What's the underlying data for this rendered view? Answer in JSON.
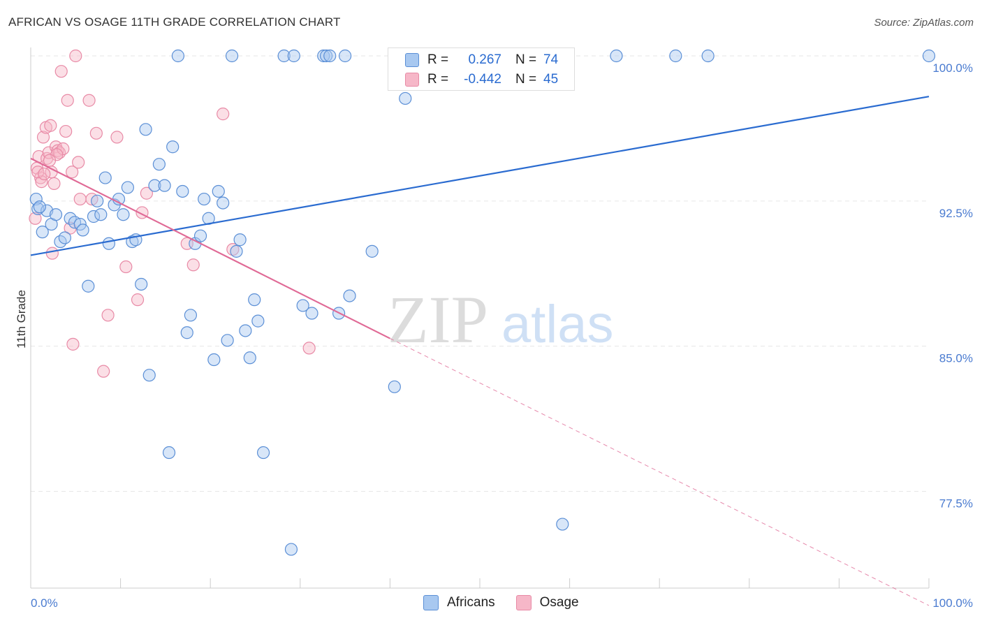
{
  "header": {
    "title": "AFRICAN VS OSAGE 11TH GRADE CORRELATION CHART",
    "source": "Source: ZipAtlas.com"
  },
  "legend": {
    "rows": [
      {
        "r_label": "R =",
        "r_value": "0.267",
        "n_label": "N =",
        "n_value": "74"
      },
      {
        "r_label": "R =",
        "r_value": "-0.442",
        "n_label": "N =",
        "n_value": "45"
      }
    ]
  },
  "watermark": {
    "zip": "ZIP",
    "atlas": "atlas"
  },
  "colors": {
    "africans_fill": "#a8c8f0",
    "africans_stroke": "#5b8fd6",
    "africans_line": "#2a6bd0",
    "osage_fill": "#f6b7c8",
    "osage_stroke": "#e88aa6",
    "osage_line": "#e06a96"
  },
  "chart_data": {
    "type": "scatter",
    "title": "AFRICAN VS OSAGE 11TH GRADE CORRELATION CHART",
    "xlabel": "",
    "ylabel": "11th Grade",
    "xlim": [
      0,
      100
    ],
    "ylim": [
      71,
      101
    ],
    "x_tick_labels": [
      "0.0%",
      "100.0%"
    ],
    "y_ticks": [
      77.5,
      85.0,
      92.5,
      100.0
    ],
    "y_tick_labels": [
      "77.5%",
      "85.0%",
      "92.5%",
      "100.0%"
    ],
    "grid": true,
    "series": [
      {
        "name": "Africans",
        "trend": {
          "x": [
            0,
            100
          ],
          "y": [
            89.7,
            97.9
          ]
        },
        "points": [
          [
            0.6,
            92.6
          ],
          [
            0.8,
            92.1
          ],
          [
            1.3,
            90.9
          ],
          [
            1.8,
            92.0
          ],
          [
            2.3,
            91.3
          ],
          [
            2.8,
            91.8
          ],
          [
            3.3,
            90.4
          ],
          [
            3.8,
            90.6
          ],
          [
            4.4,
            91.6
          ],
          [
            4.9,
            91.4
          ],
          [
            5.5,
            91.3
          ],
          [
            5.8,
            91.0
          ],
          [
            6.4,
            88.1
          ],
          [
            7.0,
            91.7
          ],
          [
            7.4,
            92.5
          ],
          [
            7.8,
            91.8
          ],
          [
            8.3,
            93.7
          ],
          [
            8.7,
            90.3
          ],
          [
            9.3,
            92.3
          ],
          [
            9.8,
            92.6
          ],
          [
            10.3,
            91.8
          ],
          [
            10.8,
            93.2
          ],
          [
            11.3,
            90.4
          ],
          [
            11.7,
            90.5
          ],
          [
            12.3,
            88.2
          ],
          [
            12.8,
            96.2
          ],
          [
            13.2,
            83.5
          ],
          [
            13.8,
            93.3
          ],
          [
            14.3,
            94.4
          ],
          [
            14.9,
            93.3
          ],
          [
            15.4,
            79.5
          ],
          [
            15.8,
            95.3
          ],
          [
            16.4,
            100.0
          ],
          [
            16.9,
            93.0
          ],
          [
            17.4,
            85.7
          ],
          [
            17.8,
            86.6
          ],
          [
            18.3,
            90.3
          ],
          [
            18.9,
            90.7
          ],
          [
            19.3,
            92.6
          ],
          [
            19.8,
            91.6
          ],
          [
            20.4,
            84.3
          ],
          [
            20.9,
            93.0
          ],
          [
            21.4,
            92.4
          ],
          [
            21.9,
            85.3
          ],
          [
            22.4,
            100.0
          ],
          [
            22.9,
            89.9
          ],
          [
            23.3,
            90.5
          ],
          [
            23.9,
            85.8
          ],
          [
            24.4,
            84.4
          ],
          [
            24.9,
            87.4
          ],
          [
            25.3,
            86.3
          ],
          [
            25.9,
            79.5
          ],
          [
            28.2,
            100.0
          ],
          [
            29.3,
            100.0
          ],
          [
            29.0,
            74.5
          ],
          [
            30.3,
            87.1
          ],
          [
            31.3,
            86.7
          ],
          [
            32.6,
            100.0
          ],
          [
            32.9,
            100.0
          ],
          [
            33.3,
            100.0
          ],
          [
            34.3,
            86.7
          ],
          [
            35.0,
            100.0
          ],
          [
            35.5,
            87.6
          ],
          [
            38.0,
            89.9
          ],
          [
            40.5,
            82.9
          ],
          [
            41.7,
            97.8
          ],
          [
            43.0,
            98.8
          ],
          [
            54.7,
            100.0
          ],
          [
            59.2,
            75.8
          ],
          [
            65.2,
            100.0
          ],
          [
            71.8,
            100.0
          ],
          [
            75.4,
            100.0
          ],
          [
            100.0,
            100.0
          ],
          [
            1.0,
            92.2
          ]
        ]
      },
      {
        "name": "Osage",
        "trend": {
          "x": [
            0,
            40
          ],
          "y": [
            94.7,
            85.4
          ]
        },
        "trend_dashed": {
          "x": [
            40,
            100
          ],
          "y": [
            85.4,
            71.6
          ]
        },
        "points": [
          [
            0.5,
            91.6
          ],
          [
            0.7,
            94.2
          ],
          [
            0.9,
            94.8
          ],
          [
            1.1,
            93.7
          ],
          [
            1.4,
            95.8
          ],
          [
            1.7,
            96.3
          ],
          [
            1.8,
            94.7
          ],
          [
            2.0,
            95.0
          ],
          [
            2.2,
            96.4
          ],
          [
            2.3,
            94.0
          ],
          [
            2.4,
            89.8
          ],
          [
            2.6,
            93.4
          ],
          [
            2.8,
            95.3
          ],
          [
            3.0,
            95.1
          ],
          [
            3.2,
            95.0
          ],
          [
            3.4,
            99.2
          ],
          [
            3.6,
            95.2
          ],
          [
            3.9,
            96.1
          ],
          [
            4.1,
            97.7
          ],
          [
            4.4,
            91.1
          ],
          [
            4.6,
            94.0
          ],
          [
            4.7,
            85.1
          ],
          [
            5.0,
            100.0
          ],
          [
            5.3,
            94.5
          ],
          [
            5.5,
            92.6
          ],
          [
            6.5,
            97.7
          ],
          [
            6.8,
            92.6
          ],
          [
            7.3,
            96.0
          ],
          [
            8.1,
            83.7
          ],
          [
            8.6,
            86.6
          ],
          [
            9.6,
            95.8
          ],
          [
            10.6,
            89.1
          ],
          [
            11.9,
            87.4
          ],
          [
            12.4,
            91.9
          ],
          [
            12.9,
            92.9
          ],
          [
            17.4,
            90.3
          ],
          [
            18.1,
            89.2
          ],
          [
            21.4,
            97.0
          ],
          [
            22.5,
            90.0
          ],
          [
            31.0,
            84.9
          ],
          [
            1.2,
            93.5
          ],
          [
            2.9,
            94.9
          ],
          [
            0.8,
            94.0
          ],
          [
            1.5,
            93.9
          ],
          [
            2.1,
            94.6
          ]
        ]
      }
    ],
    "bottom_legend": [
      "Africans",
      "Osage"
    ]
  }
}
